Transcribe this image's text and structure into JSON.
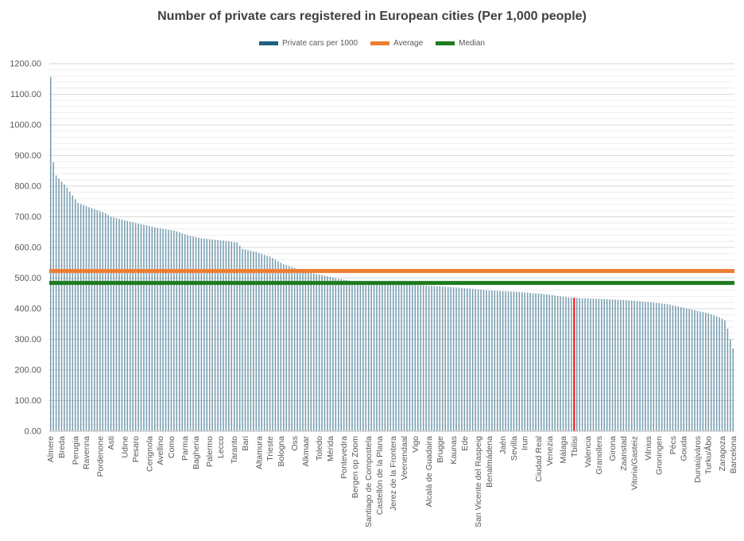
{
  "chart_data": {
    "type": "bar",
    "title": "Number of private cars registered in European cities (Per 1,000 people)",
    "ylim": [
      0,
      1200
    ],
    "yticks": [
      0,
      100,
      200,
      300,
      400,
      500,
      600,
      700,
      800,
      900,
      1000,
      1100,
      1200
    ],
    "ytick_format_decimals": 2,
    "grid": true,
    "legend_position": "top",
    "series": [
      {
        "name": "Private cars per 1000",
        "color": "#1f5f7f"
      }
    ],
    "reference_lines": [
      {
        "name": "Average",
        "value": 523,
        "color": "#ed7d31"
      },
      {
        "name": "Median",
        "value": 484,
        "color": "#1e7b1e"
      }
    ],
    "highlight": {
      "category": "Tbilisi",
      "color": "#ff0000"
    },
    "bar_count": 250,
    "labeled_categories": [
      "Almere",
      "Breda",
      "Perugia",
      "Ravenna",
      "Pordenone",
      "Asti",
      "Udine",
      "Pesaro",
      "Cerignola",
      "Avellino",
      "Como",
      "Parma",
      "Bagheria",
      "Palermo",
      "Lecco",
      "Taranto",
      "Bari",
      "Altamura",
      "Trieste",
      "Bologna",
      "Oss",
      "Alkmaar",
      "Toledo",
      "Mérida",
      "Pontevedra",
      "Bergen op Zoom",
      "Santiago de Compostela",
      "Castellón de la Plana",
      "Jerez de la Frontera",
      "Veenendaal",
      "Vigo",
      "Alcalá de Guadaira",
      "Brugge",
      "Kaunas",
      "Ede",
      "San Vicente del Raspeig",
      "Benalmádena",
      "Jaén",
      "Sevilla",
      "Irun",
      "Ciudad Real",
      "Venezia",
      "Málaga",
      "Tbilisi",
      "Valencia",
      "Granollers",
      "Girona",
      "Zaanstad",
      "Vitoria/Gasteiz",
      "Vilnius",
      "Groningen",
      "Pécs",
      "Gouda",
      "Dunaújváros",
      "Turku/Åbo",
      "Zaragoza",
      "Barcelona"
    ],
    "value_profile": [
      [
        0,
        1157
      ],
      [
        1,
        878
      ],
      [
        2,
        835
      ],
      [
        3,
        825
      ],
      [
        6,
        795
      ],
      [
        10,
        745
      ],
      [
        15,
        728
      ],
      [
        20,
        712
      ],
      [
        22,
        700
      ],
      [
        30,
        682
      ],
      [
        40,
        662
      ],
      [
        45,
        655
      ],
      [
        50,
        640
      ],
      [
        55,
        630
      ],
      [
        60,
        625
      ],
      [
        65,
        620
      ],
      [
        68,
        616
      ],
      [
        70,
        595
      ],
      [
        75,
        585
      ],
      [
        80,
        570
      ],
      [
        85,
        545
      ],
      [
        90,
        530
      ],
      [
        95,
        517
      ],
      [
        100,
        508
      ],
      [
        105,
        498
      ],
      [
        110,
        490
      ],
      [
        120,
        484
      ],
      [
        130,
        480
      ],
      [
        140,
        474
      ],
      [
        150,
        468
      ],
      [
        160,
        460
      ],
      [
        170,
        455
      ],
      [
        180,
        448
      ],
      [
        187,
        439
      ],
      [
        190,
        436
      ],
      [
        200,
        432
      ],
      [
        210,
        428
      ],
      [
        220,
        420
      ],
      [
        225,
        415
      ],
      [
        230,
        405
      ],
      [
        235,
        395
      ],
      [
        240,
        385
      ],
      [
        244,
        372
      ],
      [
        246,
        362
      ],
      [
        247,
        335
      ],
      [
        248,
        300
      ],
      [
        249,
        270
      ]
    ]
  }
}
